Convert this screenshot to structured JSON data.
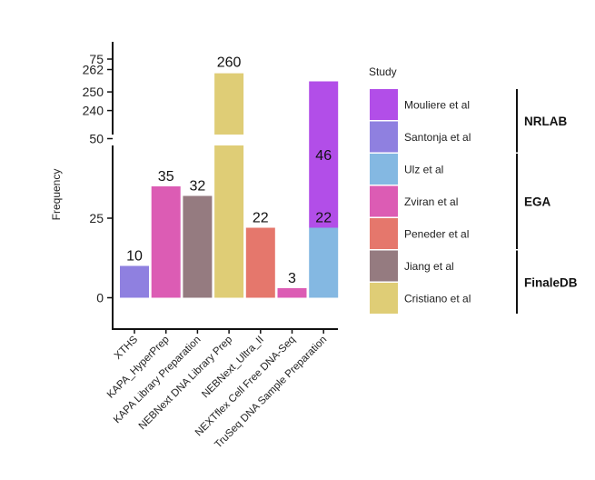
{
  "chart_data": {
    "type": "bar",
    "ylabel": "Frequency",
    "xlabel": "",
    "y_axis_broken": true,
    "lower_ylim": [
      0,
      95
    ],
    "upper_ylim": [
      232,
      266
    ],
    "lower_ticks": [
      0,
      25,
      50,
      75
    ],
    "upper_ticks": [
      240,
      250,
      262
    ],
    "categories": [
      "XTHS",
      "KAPA_HyperPrep",
      "KAPA Library Preparation",
      "NEBNext DNA Library Prep",
      "NEBNext_Ultra_II",
      "NEXTflex Cell Free DNA-Seq",
      "TruSeq DNA Sample Preparation"
    ],
    "bars": [
      {
        "category": "XTHS",
        "study": "Santonja et al",
        "value": 10,
        "base": 0,
        "label": "10",
        "color": "#8f80e0"
      },
      {
        "category": "KAPA_HyperPrep",
        "study": "Zviran et al",
        "value": 35,
        "base": 0,
        "label": "35",
        "color": "#dc5cb4"
      },
      {
        "category": "KAPA Library Preparation",
        "study": "Jiang et al",
        "value": 32,
        "base": 0,
        "label": "32",
        "color": "#957b80"
      },
      {
        "category": "NEBNext DNA Library Prep",
        "study": "Cristiano et al",
        "value": 260,
        "base": 0,
        "label": "260",
        "color": "#dfcd76"
      },
      {
        "category": "NEBNext_Ultra_II",
        "study": "Peneder et al",
        "value": 22,
        "base": 0,
        "label": "22",
        "color": "#e5776c"
      },
      {
        "category": "NEXTflex Cell Free DNA-Seq",
        "study": "Zviran et al",
        "value": 3,
        "base": 0,
        "label": "3",
        "color": "#dc5cb4"
      },
      {
        "category": "TruSeq DNA Sample Preparation",
        "study": "Ulz et al",
        "value": 22,
        "base": 0,
        "label": "22",
        "color": "#84b8e2"
      },
      {
        "category": "TruSeq DNA Sample Preparation",
        "study": "Mouliere et al",
        "value": 46,
        "base": 22,
        "label": "46",
        "color": "#b24ee8"
      }
    ],
    "legend": {
      "title": "Study",
      "placement": "right",
      "entries": [
        {
          "name": "Mouliere et al",
          "color": "#b24ee8"
        },
        {
          "name": "Santonja et al",
          "color": "#8f80e0"
        },
        {
          "name": "Ulz et al",
          "color": "#84b8e2"
        },
        {
          "name": "Zviran et al",
          "color": "#dc5cb4"
        },
        {
          "name": "Peneder et al",
          "color": "#e5776c"
        },
        {
          "name": "Jiang et al",
          "color": "#957b80"
        },
        {
          "name": "Cristiano et al",
          "color": "#dfcd76"
        }
      ],
      "groups": [
        {
          "name": "NRLAB",
          "entries": [
            "Mouliere et al",
            "Santonja et al"
          ]
        },
        {
          "name": "EGA",
          "entries": [
            "Ulz et al",
            "Zviran et al",
            "Peneder et al"
          ]
        },
        {
          "name": "FinaleDB",
          "entries": [
            "Jiang et al",
            "Cristiano et al"
          ]
        }
      ]
    }
  }
}
